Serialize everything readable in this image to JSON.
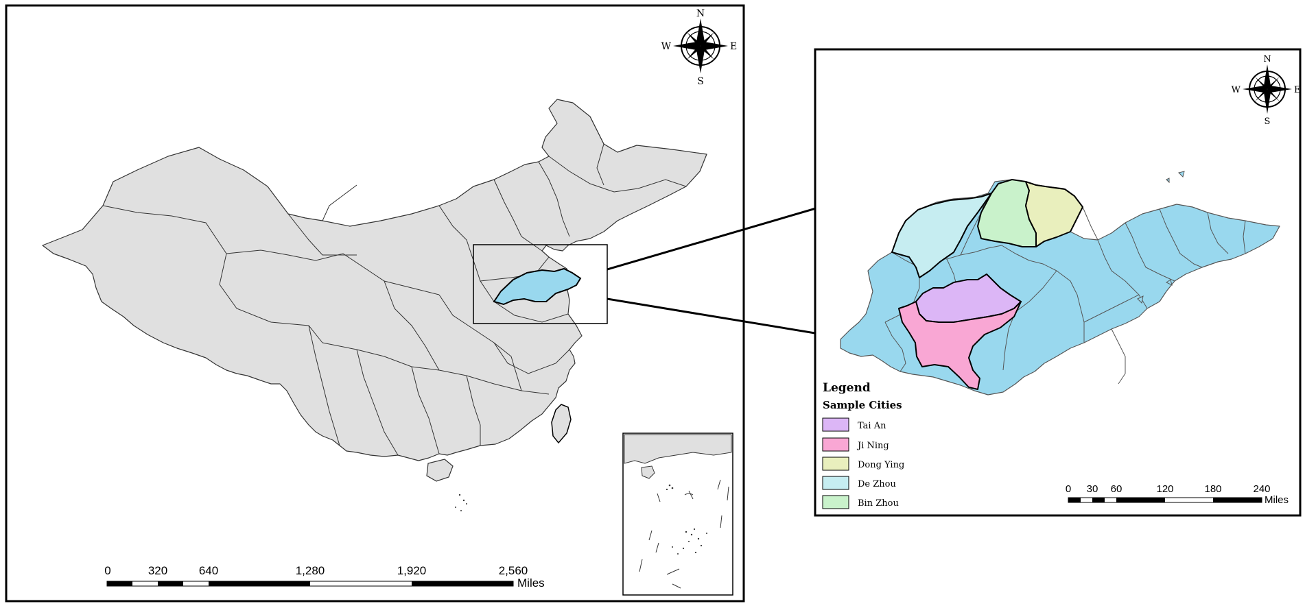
{
  "colors": {
    "land": "#e0e0e0",
    "highlight": "#99d8ee",
    "tai_an": "#dcb6f6",
    "ji_ning": "#f9a7d4",
    "dong_ying": "#e9efbd",
    "de_zhou": "#c6edf1",
    "bin_zhou": "#c9f2cb",
    "outline": "#000000"
  },
  "main_map": {
    "compass": {
      "n": "N",
      "s": "S",
      "e": "E",
      "w": "W"
    },
    "scale_bar": {
      "ticks": [
        "0",
        "320",
        "640",
        "1,280",
        "1,920",
        "2,560"
      ],
      "unit": "Miles"
    }
  },
  "inset_map": {
    "compass": {
      "n": "N",
      "s": "S",
      "e": "E",
      "w": "W"
    },
    "legend": {
      "title": "Legend",
      "subtitle": "Sample Cities",
      "items": [
        {
          "label": "Tai An",
          "color": "#dcb6f6"
        },
        {
          "label": "Ji Ning",
          "color": "#f9a7d4"
        },
        {
          "label": "Dong Ying",
          "color": "#e9efbd"
        },
        {
          "label": "De Zhou",
          "color": "#c6edf1"
        },
        {
          "label": "Bin Zhou",
          "color": "#c9f2cb"
        }
      ]
    },
    "scale_bar": {
      "ticks": [
        "0",
        "30",
        "60",
        "120",
        "180",
        "240"
      ],
      "unit": "Miles"
    }
  }
}
